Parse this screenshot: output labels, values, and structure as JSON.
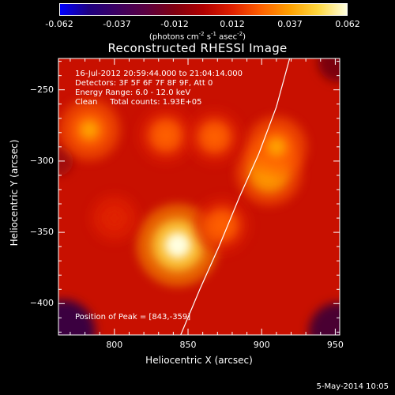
{
  "colors": {
    "background": "#000000",
    "foreground": "#ffffff",
    "colormap": [
      "#0000ff",
      "#1e0080",
      "#3c0060",
      "#5a0040",
      "#800010",
      "#b00000",
      "#e02000",
      "#ff6000",
      "#ffa000",
      "#ffd840",
      "#ffffe0"
    ]
  },
  "colorbar": {
    "ticks": [
      "-0.062",
      "-0.037",
      "-0.012",
      "0.012",
      "0.037",
      "0.062"
    ],
    "units_prefix": "(photons cm",
    "units_sup1": "-2",
    "units_mid": " s",
    "units_sup2": "-1",
    "units_mid2": " asec",
    "units_sup3": "-2",
    "units_suffix": ")"
  },
  "chart_data": {
    "type": "heatmap",
    "title": "Reconstructed RHESSI Image",
    "xlabel": "Heliocentric X (arcsec)",
    "ylabel": "Heliocentric Y (arcsec)",
    "xlim": [
      762,
      953
    ],
    "ylim": [
      -422,
      -228
    ],
    "xticks": [
      800,
      850,
      900,
      950
    ],
    "yticks": [
      -250,
      -300,
      -350,
      -400
    ],
    "value_range": [
      -0.062,
      0.062
    ],
    "sources": [
      {
        "x": 843,
        "y": -359,
        "intensity": 0.062
      },
      {
        "x": 905,
        "y": -308,
        "intensity": 0.04
      },
      {
        "x": 910,
        "y": -290,
        "intensity": 0.034
      },
      {
        "x": 783,
        "y": -278,
        "intensity": 0.035
      },
      {
        "x": 835,
        "y": -282,
        "intensity": 0.028
      },
      {
        "x": 868,
        "y": -283,
        "intensity": 0.026
      },
      {
        "x": 873,
        "y": -345,
        "intensity": 0.028
      },
      {
        "x": 800,
        "y": -340,
        "intensity": 0.018
      }
    ],
    "limb_curve": [
      [
        845,
        -422
      ],
      [
        858,
        -390
      ],
      [
        871,
        -360
      ],
      [
        885,
        -325
      ],
      [
        898,
        -295
      ],
      [
        910,
        -262
      ],
      [
        919,
        -228
      ]
    ]
  },
  "info": {
    "time_range": "16-Jul-2012 20:59:44.000 to 21:04:14.000",
    "detectors": "Detectors: 3F 5F 6F 7F 8F 9F, Att 0",
    "energy": "Energy Range: 6.0 - 12.0 keV",
    "clean": "Clean     Total counts: 1.93E+05",
    "peak": "Position of Peak = [843,-359]"
  },
  "footer_date": "5-May-2014 10:05"
}
